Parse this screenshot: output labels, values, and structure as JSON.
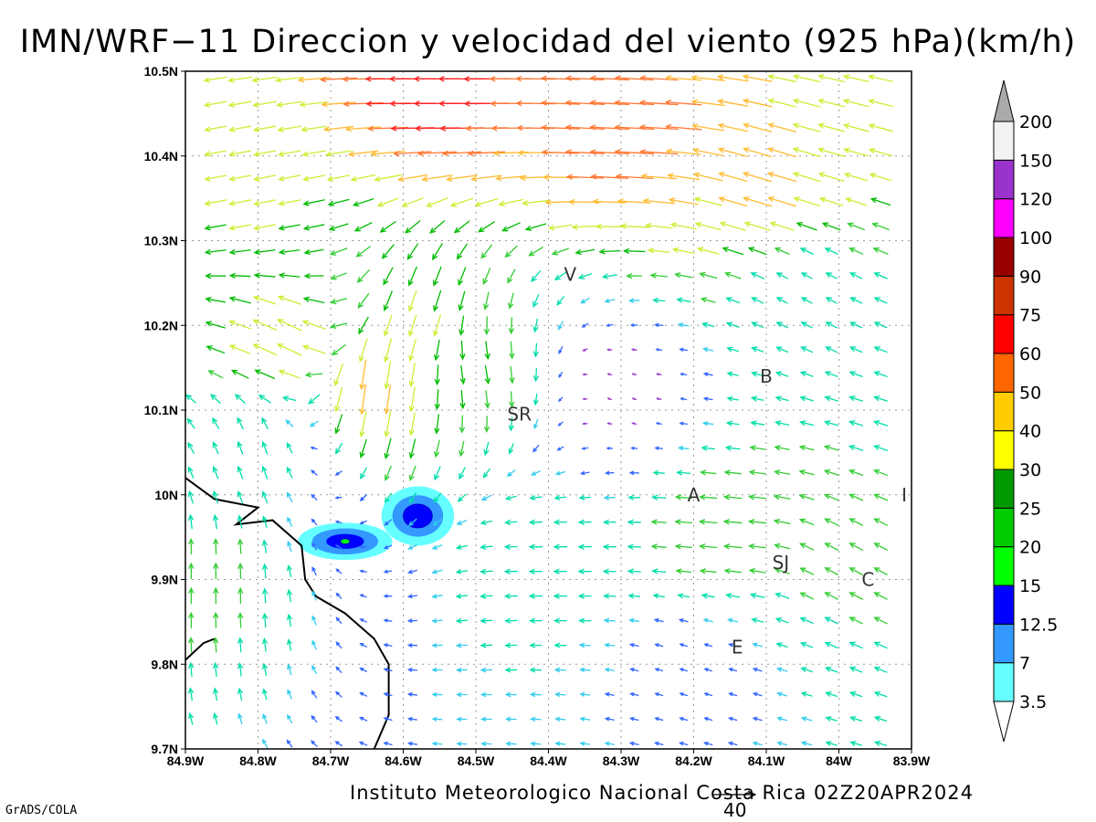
{
  "title": "IMN/WRF−11 Direccion y velocidad del viento (925 hPa)(km/h)",
  "credit": "Instituto Meteorologico Nacional Costa Rica 02Z20APR2024",
  "software": "GrADS/COLA",
  "reference_vector": {
    "value": "40"
  },
  "map": {
    "lon_range": [
      -84.9,
      -83.9
    ],
    "lat_range": [
      9.7,
      10.5
    ],
    "grid": "dotted",
    "lon_ticks": [
      "84.9W",
      "84.8W",
      "84.7W",
      "84.6W",
      "84.5W",
      "84.4W",
      "84.3W",
      "84.2W",
      "84.1W",
      "84W",
      "83.9W"
    ],
    "lat_ticks": [
      "10.5N",
      "10.4N",
      "10.3N",
      "10.2N",
      "10.1N",
      "10N",
      "9.9N",
      "9.8N",
      "9.7N"
    ],
    "places": [
      {
        "label": "V",
        "lon": -84.37,
        "lat": 10.26
      },
      {
        "label": "B",
        "lon": -84.1,
        "lat": 10.14
      },
      {
        "label": "SR",
        "lon": -84.44,
        "lat": 10.095
      },
      {
        "label": "A",
        "lon": -84.2,
        "lat": 10.0
      },
      {
        "label": "I",
        "lon": -83.91,
        "lat": 10.0
      },
      {
        "label": "SJ",
        "lon": -84.08,
        "lat": 9.92
      },
      {
        "label": "C",
        "lon": -83.96,
        "lat": 9.9
      },
      {
        "label": "E",
        "lon": -84.14,
        "lat": 9.82
      }
    ]
  },
  "colorbar": {
    "labels": [
      "3.5",
      "7",
      "12.5",
      "15",
      "20",
      "25",
      "30",
      "40",
      "50",
      "60",
      "75",
      "90",
      "100",
      "120",
      "150",
      "200"
    ],
    "colors": [
      "#66ffff",
      "#3399ff",
      "#0000ff",
      "#00ff00",
      "#00cc00",
      "#009900",
      "#ffff00",
      "#ffcc00",
      "#ff6600",
      "#ff0000",
      "#cc3300",
      "#990000",
      "#ff00ff",
      "#9933cc",
      "#f2f2f2",
      "#aaaaaa"
    ]
  },
  "chart_data": {
    "type": "vector_field",
    "title": "IMN/WRF−11 Direccion y velocidad del viento (925 hPa)(km/h)",
    "xlabel": "",
    "ylabel": "",
    "xlim": [
      -84.9,
      -83.9
    ],
    "ylim": [
      9.7,
      10.5
    ],
    "units": "km/h",
    "field_anchors": [
      {
        "lon": -84.55,
        "lat": 10.49,
        "u": -65,
        "v": 0
      },
      {
        "lon": -84.3,
        "lat": 10.43,
        "u": -55,
        "v": 3
      },
      {
        "lon": -84.1,
        "lat": 10.36,
        "u": -40,
        "v": 12
      },
      {
        "lon": -84.8,
        "lat": 10.35,
        "u": -30,
        "v": -6
      },
      {
        "lon": -84.75,
        "lat": 10.18,
        "u": -35,
        "v": 18
      },
      {
        "lon": -84.65,
        "lat": 10.13,
        "u": -5,
        "v": -45
      },
      {
        "lon": -84.58,
        "lat": 10.2,
        "u": -10,
        "v": -30
      },
      {
        "lon": -84.5,
        "lat": 10.15,
        "u": 5,
        "v": -25
      },
      {
        "lon": -84.87,
        "lat": 9.9,
        "u": 0,
        "v": 22
      },
      {
        "lon": -84.8,
        "lat": 10.05,
        "u": -6,
        "v": 18
      },
      {
        "lon": -84.4,
        "lat": 9.93,
        "u": -18,
        "v": 0
      },
      {
        "lon": -84.15,
        "lat": 9.96,
        "u": -25,
        "v": 2
      },
      {
        "lon": -84.3,
        "lat": 10.12,
        "u": -5,
        "v": 2
      },
      {
        "lon": -84.05,
        "lat": 10.25,
        "u": -14,
        "v": 8
      },
      {
        "lon": -84.0,
        "lat": 9.92,
        "u": -18,
        "v": 10
      },
      {
        "lon": -84.2,
        "lat": 9.8,
        "u": -10,
        "v": 3
      }
    ],
    "shaded_regions": [
      {
        "lon": -84.58,
        "lat": 9.975,
        "rx_deg": 0.05,
        "ry_deg": 0.035,
        "levels": [
          "3.5",
          "7",
          "12.5"
        ]
      },
      {
        "lon": -84.68,
        "lat": 9.945,
        "rx_deg": 0.065,
        "ry_deg": 0.022,
        "levels": [
          "3.5",
          "7",
          "12.5",
          "15"
        ]
      }
    ]
  }
}
